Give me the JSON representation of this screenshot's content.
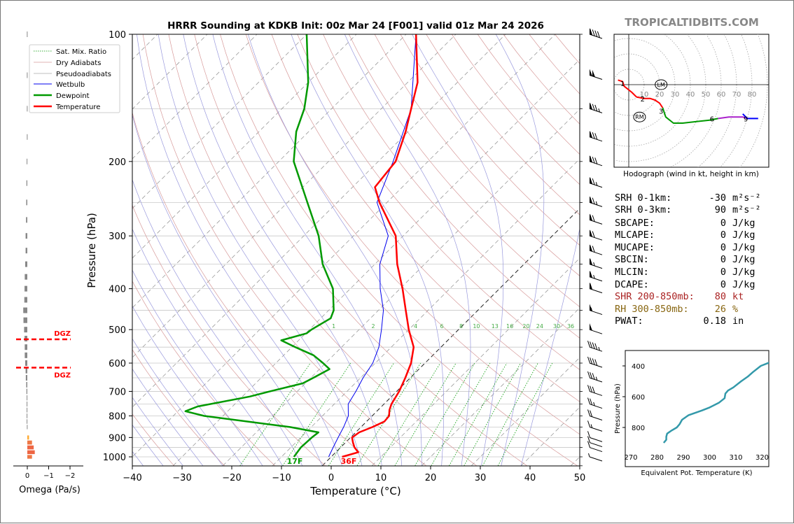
{
  "title": "HRRR Sounding at KDKB Init: 00z Mar 24 [F001] valid 01z Mar 24 2026",
  "brand": "TROPICALTIDBITS.COM",
  "colors": {
    "temperature": "#ff0000",
    "dewpoint": "#009900",
    "wetbulb": "#0000ee",
    "thetae": "#3399aa",
    "srh_red": "#aa2222",
    "rh_brown": "#886611",
    "dgz": "#ff0000"
  },
  "legend": [
    "Sat. Mix. Ratio",
    "Dry Adiabats",
    "Pseudoadiabats",
    "Wetbulb",
    "Dewpoint",
    "Temperature"
  ],
  "skewt": {
    "xlabel": "Temperature (°C)",
    "ylabel": "Pressure (hPa)",
    "xticks": [
      -40,
      -30,
      -20,
      -10,
      0,
      10,
      20,
      30,
      40,
      50
    ],
    "yticks": [
      100,
      200,
      300,
      400,
      500,
      600,
      700,
      800,
      900,
      1000
    ],
    "surface_labels": {
      "dewpoint": "17F",
      "temperature": "36F"
    },
    "mixing_ratio_labels": [
      "1",
      "2",
      "4",
      "6",
      "8",
      "10",
      "13",
      "16",
      "20",
      "24",
      "30",
      "36"
    ]
  },
  "omega": {
    "xlabel": "Omega (Pa/s)",
    "xticks": [
      "0",
      "−1",
      "−2"
    ],
    "dgz_label": "DGZ"
  },
  "hodograph": {
    "caption": "Hodograph (wind in kt, height in km)",
    "ring_labels": [
      "10",
      "20",
      "30",
      "40",
      "50",
      "60",
      "70",
      "80"
    ],
    "height_labels": [
      "1",
      "2",
      "3",
      "6",
      "9"
    ],
    "markers": [
      "LM",
      "RM"
    ]
  },
  "indices": [
    {
      "name": "SRH 0-1km:",
      "value": "-30",
      "unit": "m²s⁻²"
    },
    {
      "name": "SRH 0-3km:",
      "value": "90",
      "unit": "m²s⁻²"
    },
    {
      "name": "SBCAPE:",
      "value": "0",
      "unit": "J/kg"
    },
    {
      "name": "MLCAPE:",
      "value": "0",
      "unit": "J/kg"
    },
    {
      "name": "MUCAPE:",
      "value": "0",
      "unit": "J/kg"
    },
    {
      "name": "SBCIN:",
      "value": "0",
      "unit": "J/kg"
    },
    {
      "name": "MLCIN:",
      "value": "0",
      "unit": "J/kg"
    },
    {
      "name": "DCAPE:",
      "value": "0",
      "unit": "J/kg"
    },
    {
      "name": "SHR 200-850mb:",
      "value": "80",
      "unit": "kt"
    },
    {
      "name": "RH 300-850mb:",
      "value": "26",
      "unit": "%"
    },
    {
      "name": "PWAT:",
      "value": "0.18",
      "unit": "in"
    }
  ],
  "thetae": {
    "xlabel": "Equivalent Pot. Temperature (K)",
    "ylabel": "Pressure (hPa)",
    "xticks": [
      "270",
      "280",
      "290",
      "300",
      "310",
      "320"
    ],
    "yticks": [
      "400",
      "600",
      "800"
    ]
  },
  "chart_data": [
    {
      "type": "line",
      "title": "HRRR Sounding at KDKB Init: 00z Mar 24 [F001] valid 01z Mar 24 2026",
      "xlabel": "Temperature (°C)",
      "ylabel": "Pressure (hPa)",
      "ylim": [
        1050,
        100
      ],
      "xlim": [
        -40,
        50
      ],
      "yscale": "log",
      "skew": "45deg",
      "series": [
        {
          "name": "Temperature",
          "color": "#ff0000",
          "points": [
            [
              1000,
              2.2
            ],
            [
              975,
              4.5
            ],
            [
              950,
              2.8
            ],
            [
              925,
              1.5
            ],
            [
              900,
              0.3
            ],
            [
              875,
              0.7
            ],
            [
              850,
              2.3
            ],
            [
              825,
              3.6
            ],
            [
              800,
              3.4
            ],
            [
              775,
              2.3
            ],
            [
              750,
              1.5
            ],
            [
              700,
              0.5
            ],
            [
              650,
              -1.0
            ],
            [
              600,
              -2.8
            ],
            [
              550,
              -5.5
            ],
            [
              500,
              -10.0
            ],
            [
              450,
              -14.5
            ],
            [
              400,
              -19.5
            ],
            [
              350,
              -25.5
            ],
            [
              300,
              -31.5
            ],
            [
              250,
              -41.5
            ],
            [
              230,
              -45.5
            ],
            [
              200,
              -46.5
            ],
            [
              170,
              -50.5
            ],
            [
              150,
              -54.0
            ],
            [
              130,
              -58.0
            ],
            [
              100,
              -68.0
            ]
          ]
        },
        {
          "name": "Dewpoint",
          "color": "#009900",
          "points": [
            [
              1000,
              -7.5
            ],
            [
              950,
              -8.0
            ],
            [
              900,
              -7.8
            ],
            [
              875,
              -7.5
            ],
            [
              850,
              -14.3
            ],
            [
              800,
              -33.8
            ],
            [
              780,
              -38.5
            ],
            [
              760,
              -37.0
            ],
            [
              720,
              -28.5
            ],
            [
              700,
              -25.5
            ],
            [
              670,
              -20.5
            ],
            [
              650,
              -19.5
            ],
            [
              620,
              -18.0
            ],
            [
              600,
              -20.5
            ],
            [
              575,
              -24.0
            ],
            [
              550,
              -29.3
            ],
            [
              530,
              -33.5
            ],
            [
              510,
              -29.8
            ],
            [
              500,
              -29.6
            ],
            [
              470,
              -28.0
            ],
            [
              450,
              -29.0
            ],
            [
              400,
              -33.5
            ],
            [
              350,
              -40.5
            ],
            [
              300,
              -47.0
            ],
            [
              250,
              -56.0
            ],
            [
              200,
              -67.0
            ],
            [
              170,
              -72.5
            ],
            [
              150,
              -75.5
            ],
            [
              130,
              -80.0
            ],
            [
              100,
              -90.0
            ]
          ]
        },
        {
          "name": "Wetbulb",
          "color": "#0000ee",
          "points": [
            [
              1000,
              -0.5
            ],
            [
              950,
              -1.5
            ],
            [
              900,
              -2.5
            ],
            [
              850,
              -3.5
            ],
            [
              800,
              -4.8
            ],
            [
              750,
              -7.2
            ],
            [
              700,
              -8.2
            ],
            [
              650,
              -9.5
            ],
            [
              600,
              -10.5
            ],
            [
              550,
              -12.5
            ],
            [
              500,
              -15.5
            ],
            [
              450,
              -19.0
            ],
            [
              400,
              -24.0
            ],
            [
              350,
              -29.0
            ],
            [
              300,
              -33.0
            ],
            [
              250,
              -42.0
            ],
            [
              200,
              -47.0
            ],
            [
              150,
              -54.0
            ],
            [
              100,
              -68.0
            ]
          ]
        }
      ]
    },
    {
      "type": "bar",
      "title": "",
      "xlabel": "Omega (Pa/s)",
      "ylabel": "",
      "categories": [
        1000,
        975,
        950,
        925,
        900,
        875,
        850,
        825,
        800,
        775,
        750,
        725,
        700,
        675,
        650,
        625,
        600,
        575,
        550,
        525,
        500,
        475,
        450,
        425,
        400,
        375,
        350,
        325,
        300,
        275,
        250,
        225,
        200,
        175,
        150,
        125,
        100
      ],
      "values": [
        -0.22,
        -0.35,
        -0.3,
        -0.22,
        -0.08,
        0.0,
        0.02,
        0.03,
        0.03,
        0.03,
        0.03,
        0.03,
        0.04,
        0.05,
        0.07,
        0.08,
        0.1,
        0.12,
        0.12,
        0.13,
        0.15,
        0.18,
        0.19,
        0.14,
        0.13,
        0.12,
        0.1,
        0.08,
        0.08,
        0.06,
        0.05,
        0.04,
        0.03,
        0.02,
        0.02,
        0.02,
        0.02
      ],
      "dgz_pressures": [
        527,
        615
      ]
    },
    {
      "type": "line",
      "title": "",
      "xlabel": "Hodograph (wind in kt, height in km)",
      "ylabel": "",
      "xlim": [
        -10,
        90
      ],
      "ylim": [
        -50,
        30
      ],
      "series": [
        {
          "name": "0-1km",
          "color": "#ff0000",
          "points": [
            [
              -7,
              3
            ],
            [
              -4,
              2
            ],
            [
              -3,
              -1
            ],
            [
              2,
              -5
            ],
            [
              5,
              -8
            ]
          ]
        },
        {
          "name": "1-3km",
          "color": "#ff0000",
          "points": [
            [
              5,
              -8
            ],
            [
              10,
              -9
            ],
            [
              14,
              -9
            ],
            [
              17,
              -10
            ],
            [
              20,
              -12
            ],
            [
              22,
              -15
            ]
          ]
        },
        {
          "name": "3-6km",
          "color": "#009900",
          "points": [
            [
              22,
              -15
            ],
            [
              24,
              -21
            ],
            [
              29,
              -25
            ],
            [
              35,
              -25
            ],
            [
              44,
              -24
            ],
            [
              53,
              -23
            ],
            [
              58,
              -22
            ]
          ]
        },
        {
          "name": "6-9km",
          "color": "#aa22cc",
          "points": [
            [
              58,
              -22
            ],
            [
              65,
              -21
            ],
            [
              70,
              -21
            ],
            [
              74,
              -21
            ],
            [
              77,
              -22
            ]
          ]
        },
        {
          "name": "9+km",
          "color": "#0000ff",
          "points": [
            [
              74,
              -19
            ],
            [
              77,
              -22
            ],
            [
              81,
              -22
            ],
            [
              84,
              -22
            ]
          ]
        }
      ],
      "height_markers": [
        {
          "label": "1",
          "u": -4,
          "v": 1
        },
        {
          "label": "2",
          "u": 9,
          "v": -9
        },
        {
          "label": "3",
          "u": 21,
          "v": -17
        },
        {
          "label": "6",
          "u": 54,
          "v": -22
        },
        {
          "label": "9",
          "u": 76,
          "v": -22
        }
      ],
      "storm_motion": [
        {
          "label": "LM",
          "u": 21,
          "v": 0
        },
        {
          "label": "RM",
          "u": 7,
          "v": -21
        }
      ]
    },
    {
      "type": "line",
      "title": "",
      "xlabel": "Equivalent Pot. Temperature (K)",
      "ylabel": "Pressure (hPa)",
      "xlim": [
        270,
        322
      ],
      "ylim": [
        900,
        320
      ],
      "series": [
        {
          "name": "Theta-e",
          "color": "#3399aa",
          "points": [
            [
              282.5,
              900
            ],
            [
              283.5,
              880
            ],
            [
              283.5,
              860
            ],
            [
              283.8,
              840
            ],
            [
              285.5,
              820
            ],
            [
              287.5,
              800
            ],
            [
              288.5,
              780
            ],
            [
              289.5,
              750
            ],
            [
              292.0,
              720
            ],
            [
              297.0,
              690
            ],
            [
              300.0,
              670
            ],
            [
              303.5,
              640
            ],
            [
              305.7,
              610
            ],
            [
              306.0,
              580
            ],
            [
              307.0,
              560
            ],
            [
              309.0,
              540
            ],
            [
              312.0,
              500
            ],
            [
              314.5,
              470
            ],
            [
              316.5,
              440
            ],
            [
              319.5,
              400
            ],
            [
              322.5,
              380
            ],
            [
              325.0,
              360
            ]
          ]
        }
      ]
    }
  ]
}
